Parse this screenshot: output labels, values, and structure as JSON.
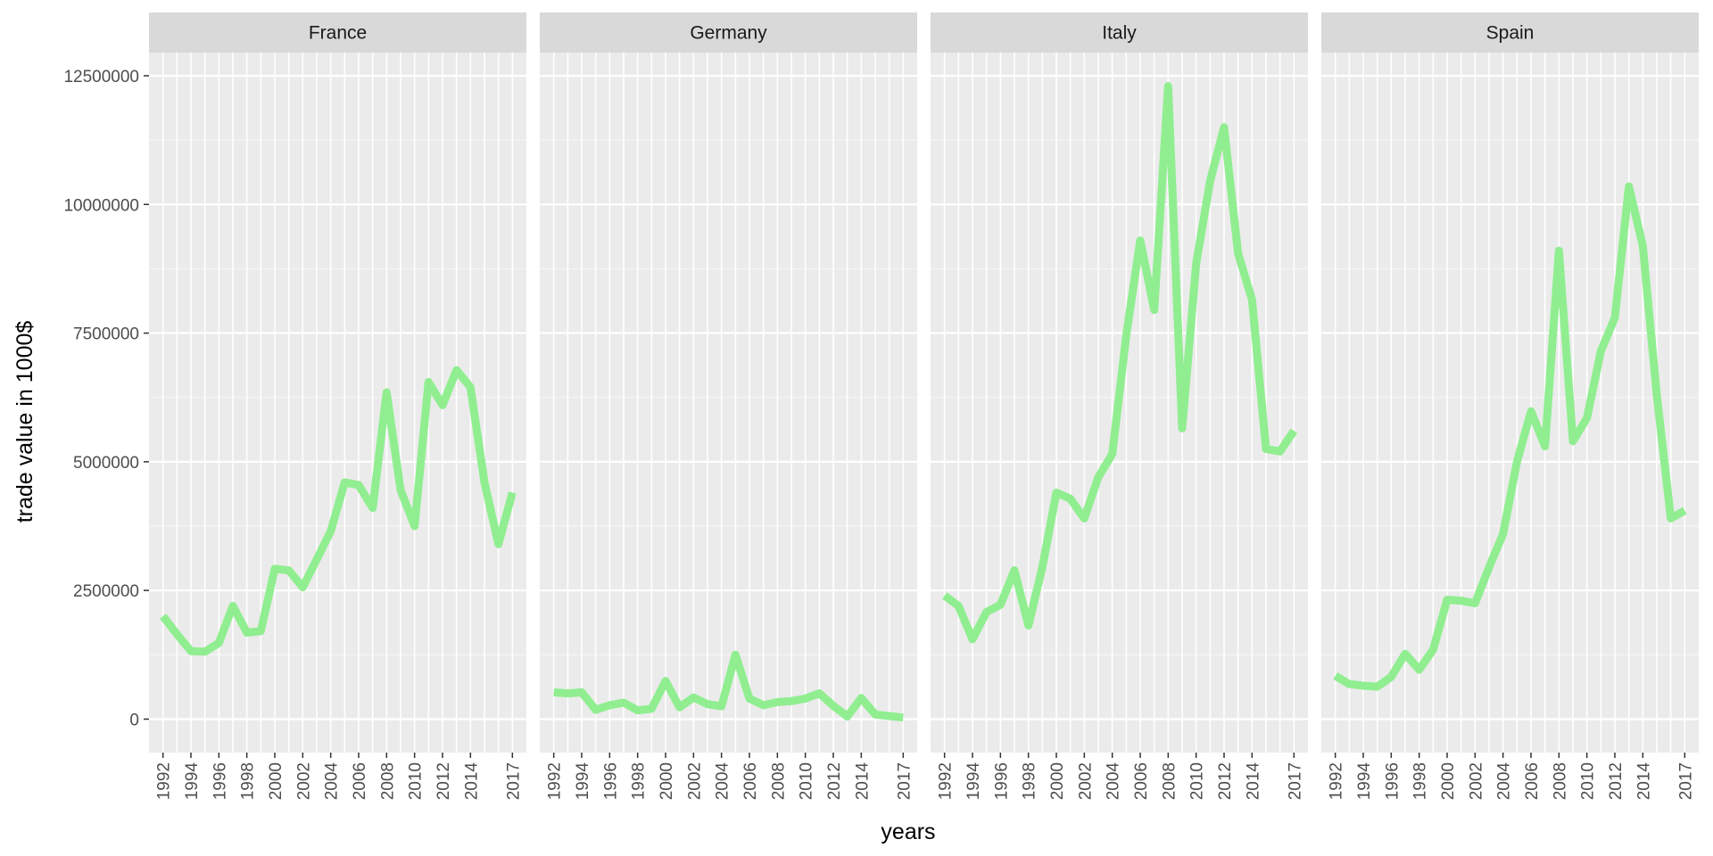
{
  "chart_data": {
    "type": "line",
    "facet_by": "country",
    "xlabel": "years",
    "ylabel": "trade value in 1000$",
    "xlim": [
      1991,
      2018
    ],
    "ylim": [
      -650000,
      12950000
    ],
    "x_ticks": [
      1992,
      1994,
      1996,
      1998,
      2000,
      2002,
      2004,
      2006,
      2008,
      2010,
      2012,
      2014,
      2017
    ],
    "x_tick_labels": [
      "1992",
      "1994",
      "1996",
      "1998",
      "2000",
      "2002",
      "2004",
      "2006",
      "2008",
      "2010",
      "2012",
      "2014",
      "2017"
    ],
    "y_ticks": [
      0,
      2500000,
      5000000,
      7500000,
      10000000,
      12500000
    ],
    "y_tick_labels": [
      "0",
      "2500000",
      "5000000",
      "7500000",
      "10000000",
      "12500000"
    ],
    "grid": true,
    "colors": {
      "line": "#90ee90",
      "panel_bg": "#ebebeb",
      "strip_bg": "#d9d9d9",
      "grid_major": "#ffffff",
      "grid_minor": "#f5f5f5"
    },
    "x": [
      1992,
      1993,
      1994,
      1995,
      1996,
      1997,
      1998,
      1999,
      2000,
      2001,
      2002,
      2003,
      2004,
      2005,
      2006,
      2007,
      2008,
      2009,
      2010,
      2011,
      2012,
      2013,
      2014,
      2015,
      2016,
      2017
    ],
    "panels": [
      {
        "name": "France",
        "values": [
          2000000,
          1650000,
          1320000,
          1310000,
          1480000,
          2200000,
          1680000,
          1710000,
          2920000,
          2890000,
          2560000,
          3100000,
          3650000,
          4600000,
          4550000,
          4100000,
          6350000,
          4450000,
          3750000,
          6550000,
          6100000,
          6780000,
          6450000,
          4600000,
          3400000,
          4400000
        ]
      },
      {
        "name": "Germany",
        "values": [
          520000,
          500000,
          520000,
          180000,
          270000,
          320000,
          170000,
          200000,
          740000,
          230000,
          420000,
          290000,
          250000,
          1250000,
          400000,
          270000,
          330000,
          350000,
          400000,
          500000,
          260000,
          50000,
          410000,
          90000,
          60000,
          30000
        ]
      },
      {
        "name": "Italy",
        "values": [
          2400000,
          2200000,
          1550000,
          2080000,
          2220000,
          2890000,
          1820000,
          2950000,
          4400000,
          4280000,
          3900000,
          4700000,
          5150000,
          7450000,
          9300000,
          7950000,
          12300000,
          5650000,
          8850000,
          10450000,
          11500000,
          9050000,
          8150000,
          5250000,
          5200000,
          5600000
        ]
      },
      {
        "name": "Spain",
        "values": [
          840000,
          680000,
          650000,
          630000,
          820000,
          1270000,
          960000,
          1350000,
          2320000,
          2300000,
          2250000,
          2950000,
          3600000,
          5000000,
          5980000,
          5300000,
          9100000,
          5400000,
          5850000,
          7150000,
          7800000,
          10350000,
          9200000,
          6300000,
          3900000,
          4050000
        ]
      }
    ]
  }
}
